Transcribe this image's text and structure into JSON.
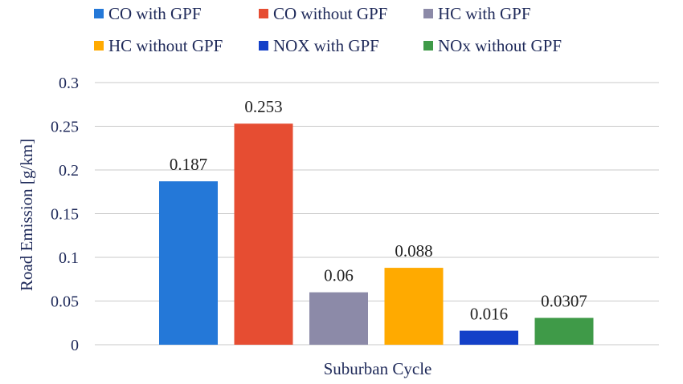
{
  "chart_data": {
    "type": "bar",
    "title": "",
    "xlabel": "Suburban Cycle",
    "ylabel": "Road Emission [g/km]",
    "ylim": [
      0,
      0.3
    ],
    "yticks": [
      0,
      0.05,
      0.1,
      0.15,
      0.2,
      0.25,
      0.3
    ],
    "ytick_labels": [
      "0",
      "0.05",
      "0.1",
      "0.15",
      "0.2",
      "0.25",
      "0.3"
    ],
    "grid": true,
    "legend_position": "top",
    "categories": [
      "Suburban Cycle"
    ],
    "series": [
      {
        "name": "CO with GPF",
        "values": [
          0.187
        ],
        "label": "0.187",
        "color": "#2478D8"
      },
      {
        "name": "CO without GPF",
        "values": [
          0.253
        ],
        "label": "0.253",
        "color": "#E64D32"
      },
      {
        "name": "HC with GPF",
        "values": [
          0.06
        ],
        "label": "0.06",
        "color": "#8C8AA8"
      },
      {
        "name": "HC without GPF",
        "values": [
          0.088
        ],
        "label": "0.088",
        "color": "#FFAA00"
      },
      {
        "name": "NOX with GPF",
        "values": [
          0.016
        ],
        "label": "0.016",
        "color": "#1440C8"
      },
      {
        "name": "NOx without GPF",
        "values": [
          0.0307
        ],
        "label": "0.0307",
        "color": "#3F9A48"
      }
    ]
  }
}
